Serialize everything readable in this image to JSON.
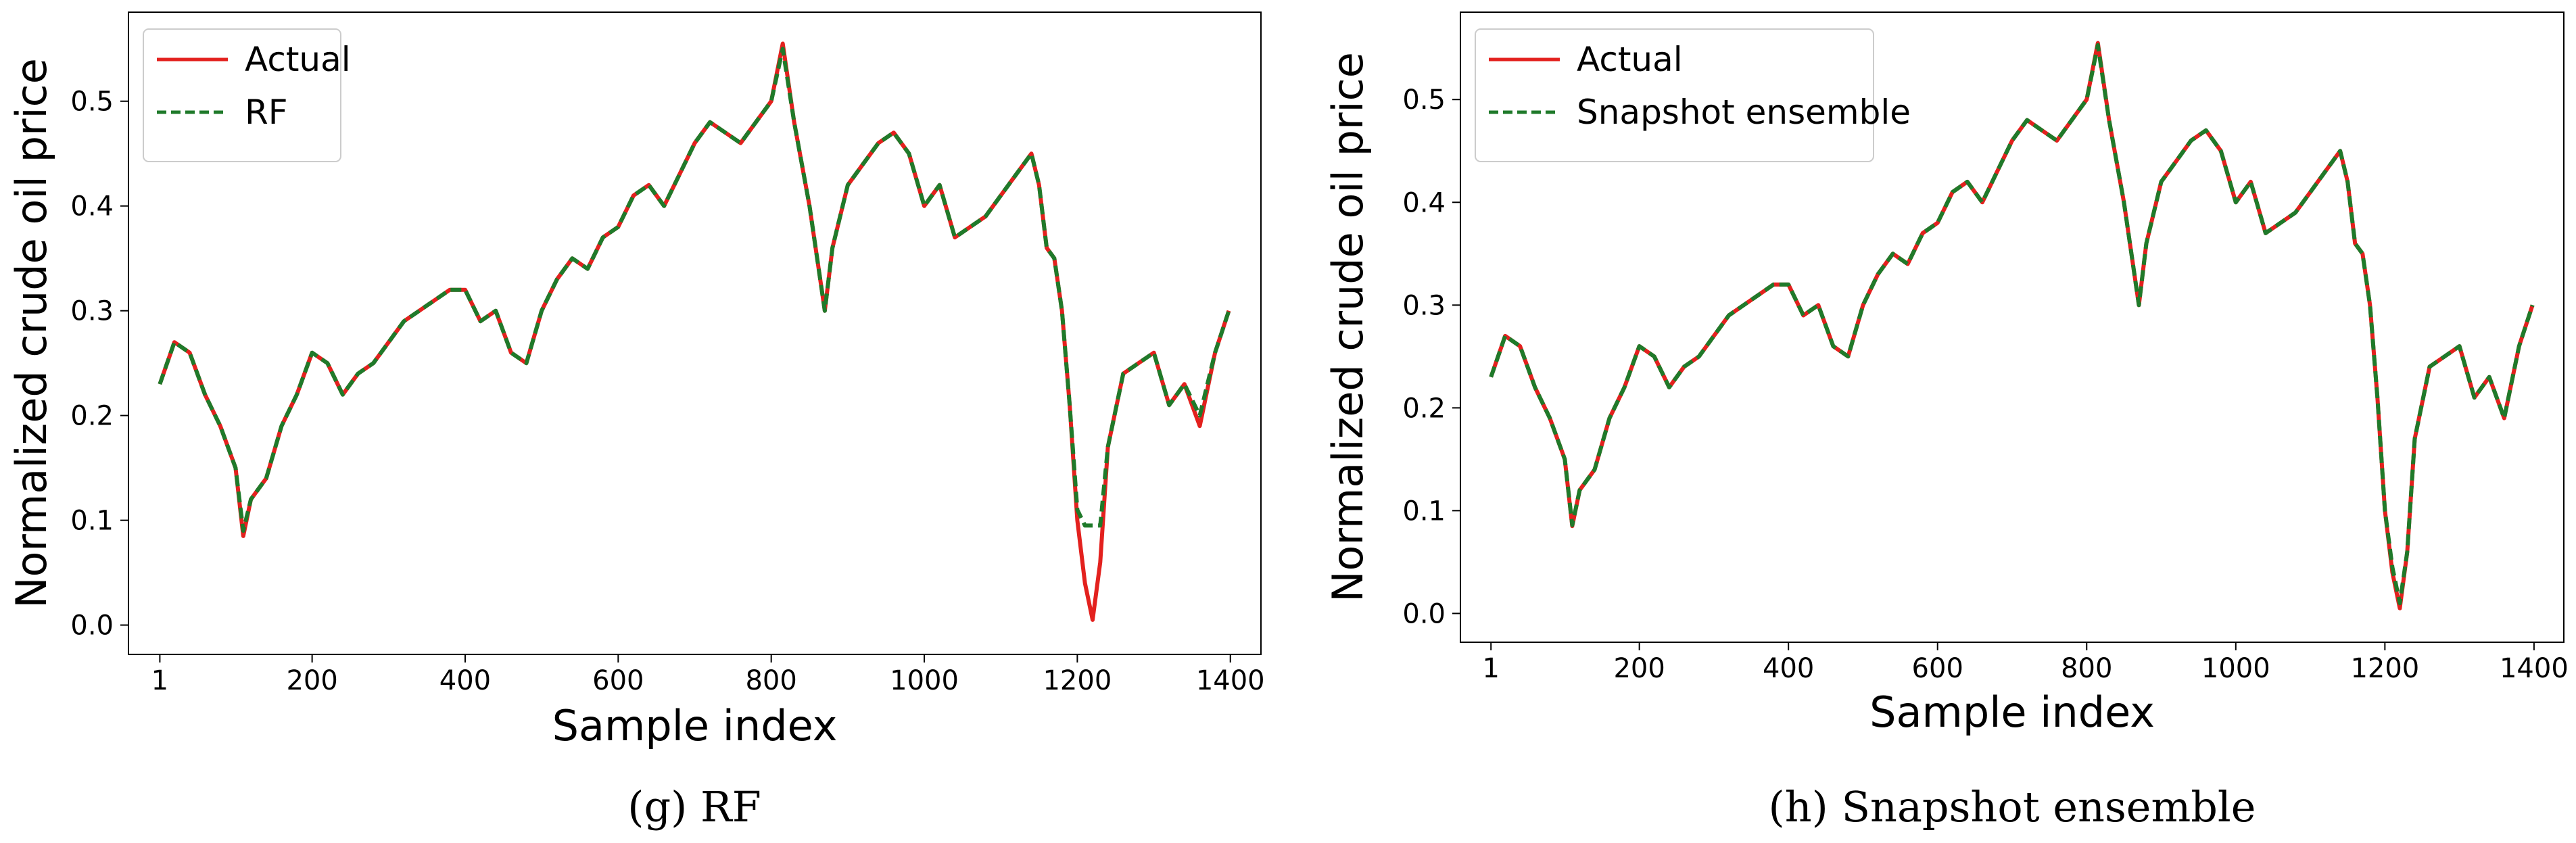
{
  "colors": {
    "actual": "#e3211e",
    "pred": "#1f7a2a",
    "axis": "#000000",
    "legend_border": "#cccccc"
  },
  "chart_data": [
    {
      "type": "line",
      "caption": "(g) RF",
      "xlabel": "Sample index",
      "ylabel": "Normalized crude oil price",
      "xlim": [
        -40,
        1440
      ],
      "ylim": [
        -0.028,
        0.585
      ],
      "xticks": [
        1,
        200,
        400,
        600,
        800,
        1000,
        1200,
        1400
      ],
      "xtick_labels": [
        "1",
        "200",
        "400",
        "600",
        "800",
        "1000",
        "1200",
        "1400"
      ],
      "yticks": [
        0.0,
        0.1,
        0.2,
        0.3,
        0.4,
        0.5
      ],
      "ytick_labels": [
        "0.0",
        "0.1",
        "0.2",
        "0.3",
        "0.4",
        "0.5"
      ],
      "legend": {
        "position": "upper-left",
        "entries": [
          "Actual",
          "RF"
        ]
      },
      "grid": false,
      "series": [
        {
          "name": "Actual",
          "style": "solid",
          "x": [
            1,
            20,
            40,
            60,
            80,
            100,
            110,
            120,
            140,
            160,
            180,
            200,
            220,
            240,
            260,
            280,
            300,
            320,
            340,
            360,
            380,
            400,
            420,
            440,
            460,
            480,
            500,
            520,
            540,
            560,
            580,
            600,
            620,
            640,
            660,
            680,
            700,
            720,
            740,
            760,
            780,
            800,
            815,
            830,
            850,
            870,
            880,
            900,
            920,
            940,
            960,
            980,
            1000,
            1020,
            1040,
            1060,
            1080,
            1100,
            1120,
            1140,
            1150,
            1160,
            1170,
            1180,
            1190,
            1200,
            1210,
            1220,
            1230,
            1240,
            1260,
            1280,
            1300,
            1320,
            1340,
            1360,
            1380,
            1398
          ],
          "y": [
            0.23,
            0.27,
            0.26,
            0.22,
            0.19,
            0.15,
            0.085,
            0.12,
            0.14,
            0.19,
            0.22,
            0.26,
            0.25,
            0.22,
            0.24,
            0.25,
            0.27,
            0.29,
            0.3,
            0.31,
            0.32,
            0.32,
            0.29,
            0.3,
            0.26,
            0.25,
            0.3,
            0.33,
            0.35,
            0.34,
            0.37,
            0.38,
            0.41,
            0.42,
            0.4,
            0.43,
            0.46,
            0.48,
            0.47,
            0.46,
            0.48,
            0.5,
            0.555,
            0.48,
            0.4,
            0.3,
            0.36,
            0.42,
            0.44,
            0.46,
            0.47,
            0.45,
            0.4,
            0.42,
            0.37,
            0.38,
            0.39,
            0.41,
            0.43,
            0.45,
            0.42,
            0.36,
            0.35,
            0.3,
            0.21,
            0.1,
            0.04,
            0.005,
            0.06,
            0.17,
            0.24,
            0.25,
            0.26,
            0.21,
            0.23,
            0.19,
            0.26,
            0.3
          ]
        },
        {
          "name": "RF",
          "style": "dashed",
          "x": [
            1,
            20,
            40,
            60,
            80,
            100,
            110,
            120,
            140,
            160,
            180,
            200,
            220,
            240,
            260,
            280,
            300,
            320,
            340,
            360,
            380,
            400,
            420,
            440,
            460,
            480,
            500,
            520,
            540,
            560,
            580,
            600,
            620,
            640,
            660,
            680,
            700,
            720,
            740,
            760,
            780,
            800,
            815,
            830,
            850,
            870,
            880,
            900,
            920,
            940,
            960,
            980,
            1000,
            1020,
            1040,
            1060,
            1080,
            1100,
            1120,
            1140,
            1150,
            1160,
            1170,
            1180,
            1190,
            1200,
            1210,
            1220,
            1230,
            1240,
            1260,
            1280,
            1300,
            1320,
            1340,
            1360,
            1380,
            1398
          ],
          "y": [
            0.23,
            0.27,
            0.26,
            0.22,
            0.19,
            0.15,
            0.09,
            0.12,
            0.14,
            0.19,
            0.22,
            0.26,
            0.25,
            0.22,
            0.24,
            0.25,
            0.27,
            0.29,
            0.3,
            0.31,
            0.32,
            0.32,
            0.29,
            0.3,
            0.26,
            0.25,
            0.3,
            0.33,
            0.35,
            0.34,
            0.37,
            0.38,
            0.41,
            0.42,
            0.4,
            0.43,
            0.46,
            0.48,
            0.47,
            0.46,
            0.48,
            0.5,
            0.55,
            0.48,
            0.4,
            0.3,
            0.36,
            0.42,
            0.44,
            0.46,
            0.47,
            0.45,
            0.4,
            0.42,
            0.37,
            0.38,
            0.39,
            0.41,
            0.43,
            0.45,
            0.42,
            0.36,
            0.35,
            0.3,
            0.21,
            0.11,
            0.095,
            0.095,
            0.095,
            0.17,
            0.24,
            0.25,
            0.26,
            0.21,
            0.23,
            0.2,
            0.26,
            0.3
          ]
        }
      ]
    },
    {
      "type": "line",
      "caption": "(h) Snapshot ensemble",
      "xlabel": "Sample index",
      "ylabel": "Normalized crude oil price",
      "xlim": [
        -40,
        1440
      ],
      "ylim": [
        -0.028,
        0.585
      ],
      "xticks": [
        1,
        200,
        400,
        600,
        800,
        1000,
        1200,
        1400
      ],
      "xtick_labels": [
        "1",
        "200",
        "400",
        "600",
        "800",
        "1000",
        "1200",
        "1400"
      ],
      "yticks": [
        0.0,
        0.1,
        0.2,
        0.3,
        0.4,
        0.5
      ],
      "ytick_labels": [
        "0.0",
        "0.1",
        "0.2",
        "0.3",
        "0.4",
        "0.5"
      ],
      "legend": {
        "position": "upper-left",
        "entries": [
          "Actual",
          "Snapshot ensemble"
        ]
      },
      "grid": false,
      "series": [
        {
          "name": "Actual",
          "style": "solid",
          "x": [
            1,
            20,
            40,
            60,
            80,
            100,
            110,
            120,
            140,
            160,
            180,
            200,
            220,
            240,
            260,
            280,
            300,
            320,
            340,
            360,
            380,
            400,
            420,
            440,
            460,
            480,
            500,
            520,
            540,
            560,
            580,
            600,
            620,
            640,
            660,
            680,
            700,
            720,
            740,
            760,
            780,
            800,
            815,
            830,
            850,
            870,
            880,
            900,
            920,
            940,
            960,
            980,
            1000,
            1020,
            1040,
            1060,
            1080,
            1100,
            1120,
            1140,
            1150,
            1160,
            1170,
            1180,
            1190,
            1200,
            1210,
            1220,
            1230,
            1240,
            1260,
            1280,
            1300,
            1320,
            1340,
            1360,
            1380,
            1398
          ],
          "y": [
            0.23,
            0.27,
            0.26,
            0.22,
            0.19,
            0.15,
            0.085,
            0.12,
            0.14,
            0.19,
            0.22,
            0.26,
            0.25,
            0.22,
            0.24,
            0.25,
            0.27,
            0.29,
            0.3,
            0.31,
            0.32,
            0.32,
            0.29,
            0.3,
            0.26,
            0.25,
            0.3,
            0.33,
            0.35,
            0.34,
            0.37,
            0.38,
            0.41,
            0.42,
            0.4,
            0.43,
            0.46,
            0.48,
            0.47,
            0.46,
            0.48,
            0.5,
            0.555,
            0.48,
            0.4,
            0.3,
            0.36,
            0.42,
            0.44,
            0.46,
            0.47,
            0.45,
            0.4,
            0.42,
            0.37,
            0.38,
            0.39,
            0.41,
            0.43,
            0.45,
            0.42,
            0.36,
            0.35,
            0.3,
            0.21,
            0.1,
            0.04,
            0.005,
            0.06,
            0.17,
            0.24,
            0.25,
            0.26,
            0.21,
            0.23,
            0.19,
            0.26,
            0.3
          ]
        },
        {
          "name": "Snapshot ensemble",
          "style": "dashed",
          "x": [
            1,
            20,
            40,
            60,
            80,
            100,
            110,
            120,
            140,
            160,
            180,
            200,
            220,
            240,
            260,
            280,
            300,
            320,
            340,
            360,
            380,
            400,
            420,
            440,
            460,
            480,
            500,
            520,
            540,
            560,
            580,
            600,
            620,
            640,
            660,
            680,
            700,
            720,
            740,
            760,
            780,
            800,
            815,
            830,
            850,
            870,
            880,
            900,
            920,
            940,
            960,
            980,
            1000,
            1020,
            1040,
            1060,
            1080,
            1100,
            1120,
            1140,
            1150,
            1160,
            1170,
            1180,
            1190,
            1200,
            1210,
            1220,
            1230,
            1240,
            1260,
            1280,
            1300,
            1320,
            1340,
            1360,
            1380,
            1398
          ],
          "y": [
            0.23,
            0.27,
            0.26,
            0.22,
            0.19,
            0.15,
            0.086,
            0.12,
            0.14,
            0.19,
            0.22,
            0.26,
            0.25,
            0.22,
            0.24,
            0.25,
            0.27,
            0.29,
            0.3,
            0.31,
            0.32,
            0.32,
            0.29,
            0.3,
            0.26,
            0.25,
            0.3,
            0.33,
            0.35,
            0.34,
            0.37,
            0.38,
            0.41,
            0.42,
            0.4,
            0.43,
            0.46,
            0.48,
            0.47,
            0.46,
            0.48,
            0.5,
            0.553,
            0.48,
            0.4,
            0.3,
            0.36,
            0.42,
            0.44,
            0.46,
            0.47,
            0.45,
            0.4,
            0.42,
            0.37,
            0.38,
            0.39,
            0.41,
            0.43,
            0.45,
            0.42,
            0.36,
            0.35,
            0.3,
            0.21,
            0.1,
            0.045,
            0.01,
            0.06,
            0.17,
            0.24,
            0.25,
            0.26,
            0.21,
            0.23,
            0.19,
            0.26,
            0.3
          ]
        }
      ]
    }
  ]
}
